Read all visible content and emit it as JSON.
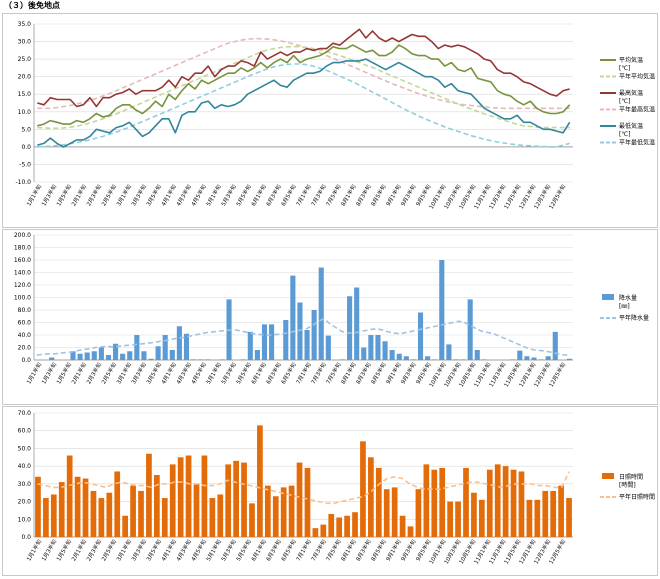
{
  "page_title": "（３）後免地点",
  "x_labels": [
    "1月1半旬",
    "1月3半旬",
    "1月5半旬",
    "2月1半旬",
    "2月3半旬",
    "2月5半旬",
    "3月1半旬",
    "3月3半旬",
    "3月5半旬",
    "4月1半旬",
    "4月3半旬",
    "4月5半旬",
    "5月1半旬",
    "5月3半旬",
    "5月5半旬",
    "6月1半旬",
    "6月3半旬",
    "6月5半旬",
    "7月1半旬",
    "7月3半旬",
    "7月5半旬",
    "8月1半旬",
    "8月3半旬",
    "8月5半旬",
    "9月1半旬",
    "9月3半旬",
    "9月5半旬",
    "10月1半旬",
    "10月3半旬",
    "10月5半旬",
    "11月1半旬",
    "11月3半旬",
    "11月5半旬",
    "12月1半旬",
    "12月3半旬",
    "12月5半旬"
  ],
  "chart_data": [
    {
      "type": "line",
      "ylim": [
        -10,
        35
      ],
      "ytick_step": 5,
      "ytick_decimals": 1,
      "colors": {
        "avg": "#77933c",
        "max": "#953735",
        "min": "#31859c"
      },
      "legend": [
        {
          "key": "avg",
          "label": "平均気温",
          "unit": "[℃]",
          "style": "solid",
          "color": "#77933c"
        },
        {
          "key": "avg_normal",
          "label": "平年平均気温",
          "style": "dash",
          "color": "#c3d69b"
        },
        {
          "key": "max",
          "label": "最高気温",
          "unit": "[℃]",
          "style": "solid",
          "color": "#953735"
        },
        {
          "key": "max_normal",
          "label": "平年最高気温",
          "style": "dash",
          "color": "#e6b9b8"
        },
        {
          "key": "min",
          "label": "最低気温",
          "unit": "[℃]",
          "style": "solid",
          "color": "#31859c"
        },
        {
          "key": "min_normal",
          "label": "平年最低気温",
          "style": "dash",
          "color": "#93cddd"
        }
      ],
      "series": {
        "avg": [
          6,
          6.5,
          7.5,
          7,
          6.5,
          6.5,
          7.5,
          7,
          8,
          9.5,
          8.5,
          9,
          11,
          12,
          12,
          10.5,
          9.5,
          11,
          13,
          11.5,
          15,
          13.5,
          16,
          18,
          16.5,
          19,
          18,
          19,
          20,
          21,
          21,
          22.5,
          21.5,
          22.5,
          24,
          22.5,
          24,
          25,
          24,
          26,
          24,
          25,
          25.5,
          26,
          27,
          28.5,
          28,
          28,
          29,
          28,
          27,
          27.5,
          26,
          26,
          27,
          29,
          28,
          26.5,
          26,
          26,
          25,
          25,
          23,
          24,
          22,
          21.5,
          22.5,
          19.5,
          19,
          18.5,
          16,
          15,
          14.5,
          13,
          12,
          13,
          11,
          10,
          9.5,
          9.5,
          10,
          12
        ],
        "max": [
          12.5,
          12,
          14,
          13.5,
          13.5,
          13.5,
          11.5,
          12,
          14,
          11.5,
          14,
          14,
          15,
          15.5,
          16.5,
          15,
          16,
          16,
          16,
          17,
          19,
          17,
          20,
          19,
          21,
          21,
          23,
          20,
          22,
          23,
          23,
          24.5,
          24,
          23,
          27,
          25,
          26,
          27,
          26,
          27,
          27,
          28,
          27.5,
          28,
          28,
          29.5,
          29,
          30.5,
          32,
          33.5,
          31,
          33,
          31,
          30,
          31,
          30,
          31,
          32,
          31.5,
          31.5,
          30,
          28,
          29,
          28.5,
          29,
          28.5,
          27.5,
          26.5,
          25,
          24.5,
          22,
          21,
          21,
          20,
          18.5,
          18,
          17,
          16,
          15,
          14.5,
          16,
          16.5
        ],
        "min": [
          0.5,
          1,
          2.5,
          1,
          0,
          1,
          2,
          2,
          3,
          5,
          4.5,
          4,
          5.5,
          6,
          7,
          5,
          3,
          4,
          6,
          8,
          8,
          4,
          9,
          10,
          10,
          12.5,
          13,
          11,
          12,
          11.5,
          12,
          13,
          15,
          16,
          17,
          18,
          19,
          17.5,
          17,
          19,
          20,
          21,
          21,
          21.5,
          23,
          24,
          24,
          24.5,
          24.5,
          24.5,
          25,
          24,
          23,
          22,
          23,
          24,
          23,
          22,
          21,
          20,
          20,
          19,
          17,
          18,
          16,
          15.5,
          15,
          13,
          11,
          10,
          9,
          8,
          8,
          9,
          7,
          7,
          6,
          5,
          5,
          4.5,
          4,
          7
        ],
        "avg_normal": [
          5.5,
          5.4,
          5.3,
          5.3,
          5.4,
          5.6,
          5.9,
          6.3,
          6.8,
          7.4,
          8,
          8.7,
          9.4,
          10.2,
          11,
          11.8,
          12.6,
          13.4,
          14.2,
          15,
          15.8,
          16.6,
          17.4,
          18.2,
          19,
          19.8,
          20.6,
          21.4,
          22.2,
          23,
          23.8,
          24.6,
          25.4,
          26.2,
          27,
          27.6,
          28,
          28.3,
          28.5,
          28.6,
          28.5,
          28.3,
          28,
          27.6,
          27.2,
          26.6,
          26,
          25.4,
          24.7,
          24,
          23.3,
          22.6,
          21.8,
          21,
          20.2,
          19.4,
          18.6,
          17.8,
          17,
          16.2,
          15.4,
          14.6,
          13.8,
          13,
          12.2,
          11.5,
          10.8,
          10.1,
          9.4,
          8.8,
          8.2,
          7.6,
          7,
          6.4,
          6,
          5.8,
          5.6,
          5.5,
          5.5,
          5.5,
          5.5,
          5.5
        ],
        "max_normal": [
          11,
          11,
          11,
          11.2,
          11.5,
          11.8,
          12.2,
          12.7,
          13.2,
          13.8,
          14.5,
          15.2,
          16,
          16.8,
          17.6,
          18.4,
          19.2,
          20,
          20.8,
          21.6,
          22.4,
          23.2,
          24,
          24.8,
          25.6,
          26.4,
          27.2,
          28,
          28.8,
          29.5,
          30,
          30.4,
          30.7,
          30.8,
          30.8,
          30.7,
          30.5,
          30.2,
          29.8,
          29.3,
          28.8,
          28.2,
          27.5,
          26.8,
          26,
          25.2,
          24.4,
          23.6,
          22.8,
          22,
          21.2,
          20.4,
          19.6,
          18.8,
          18,
          17.3,
          16.6,
          15.9,
          15.2,
          14.6,
          14,
          13.5,
          13,
          12.6,
          12.3,
          12,
          11.8,
          11.6,
          11.4,
          11.2,
          11.1,
          11,
          11,
          11,
          11,
          11,
          11,
          11,
          11,
          11,
          11,
          11
        ],
        "min_normal": [
          0,
          0.1,
          0.2,
          0.4,
          0.6,
          0.9,
          1.2,
          1.6,
          2,
          2.5,
          3,
          3.6,
          4.2,
          4.9,
          5.6,
          6.4,
          7.2,
          8,
          8.8,
          9.6,
          10.4,
          11.2,
          12,
          12.8,
          13.6,
          14.4,
          15.2,
          16,
          16.8,
          17.6,
          18.4,
          19.2,
          20,
          20.8,
          21.5,
          22.2,
          22.8,
          23.2,
          23.5,
          23.6,
          23.6,
          23.4,
          23,
          22.4,
          21.8,
          21,
          20.2,
          19.4,
          18.5,
          17.6,
          16.6,
          15.6,
          14.6,
          13.6,
          12.6,
          11.6,
          10.6,
          9.7,
          8.8,
          8,
          7.2,
          6.4,
          5.7,
          5,
          4.4,
          3.8,
          3.2,
          2.7,
          2.2,
          1.8,
          1.4,
          1.1,
          0.8,
          0.6,
          0.4,
          0.3,
          0.2,
          0.1,
          0,
          0,
          0.5,
          1
        ]
      }
    },
    {
      "type": "bar",
      "ylim": [
        0,
        200
      ],
      "ytick_step": 20,
      "ytick_decimals": 1,
      "bar_color": "#5b9bd5",
      "normal_color": "#9dc3e6",
      "legend": [
        {
          "key": "bar",
          "label": "降水量",
          "unit": "[㎜]",
          "style": "box",
          "color": "#5b9bd5"
        },
        {
          "key": "normal",
          "label": "平年降水量",
          "style": "dash",
          "color": "#9dc3e6"
        }
      ],
      "values": [
        0,
        0,
        4,
        0,
        0,
        14,
        10,
        12,
        14,
        20,
        8,
        26,
        10,
        14,
        40,
        14,
        2,
        22,
        40,
        16,
        54,
        42,
        1,
        1,
        1,
        0,
        1,
        97,
        0,
        1,
        45,
        16,
        57,
        57,
        0,
        64,
        135,
        92,
        48,
        80,
        148,
        39,
        0,
        1,
        102,
        116,
        20,
        40,
        40,
        30,
        16,
        10,
        6,
        1,
        76,
        6,
        1,
        160,
        25,
        1,
        1,
        97,
        16,
        1,
        0,
        0,
        0,
        1,
        15,
        6,
        4,
        1,
        6,
        45,
        0,
        2
      ],
      "normal": [
        8,
        9,
        10,
        10,
        11,
        12,
        13,
        15,
        17,
        18,
        20,
        21,
        22,
        21,
        22,
        23,
        24,
        25,
        26,
        27,
        28,
        30,
        31,
        33,
        35,
        36,
        38,
        40,
        42,
        44,
        45,
        46,
        47,
        48,
        48,
        46,
        44,
        42,
        41,
        40,
        40,
        41,
        42,
        44,
        46,
        48,
        50,
        55,
        62,
        66,
        58,
        52,
        46,
        43,
        43,
        45,
        47,
        49,
        50,
        48,
        45,
        43,
        42,
        44,
        46,
        48,
        50,
        52,
        54,
        56,
        58,
        60,
        62,
        60,
        55,
        50,
        46,
        44,
        42,
        38,
        34,
        30,
        26,
        22,
        18,
        16,
        15,
        14,
        12,
        10,
        8,
        8
      ]
    },
    {
      "type": "bar",
      "ylim": [
        0,
        70
      ],
      "ytick_step": 10,
      "ytick_decimals": 1,
      "bar_color": "#e36c09",
      "normal_color": "#fac090",
      "legend": [
        {
          "key": "bar",
          "label": "日照時間",
          "unit": "[時間]",
          "style": "box",
          "color": "#e36c09"
        },
        {
          "key": "normal",
          "label": "平年日照時間",
          "style": "dash",
          "color": "#fac090"
        }
      ],
      "values": [
        34,
        22,
        24,
        31,
        46,
        34,
        33,
        26,
        22,
        25,
        37,
        12,
        29,
        26,
        47,
        35,
        22,
        41,
        45,
        46,
        30,
        46,
        22,
        24,
        41,
        43,
        42,
        19,
        63,
        29,
        23,
        28,
        29,
        42,
        39,
        5,
        7,
        13,
        11,
        12,
        14,
        54,
        45,
        39,
        27,
        28,
        12,
        6,
        27,
        41,
        38,
        39,
        20,
        20,
        39,
        25,
        21,
        38,
        41,
        40,
        38,
        37,
        21,
        21,
        26,
        26,
        29,
        22
      ],
      "normal": [
        30,
        29,
        28,
        28,
        29,
        30,
        31,
        30,
        29,
        28,
        30,
        31,
        30,
        29,
        29,
        28,
        30,
        30,
        31,
        31,
        30,
        30,
        29,
        29,
        30,
        32,
        31,
        30,
        29,
        28,
        27,
        26,
        25,
        24,
        23,
        22,
        21,
        20,
        19,
        19,
        20,
        21,
        22,
        23,
        26,
        30,
        33,
        34,
        33,
        30,
        28,
        27,
        27,
        27,
        28,
        29,
        30,
        31,
        31,
        30,
        29,
        28,
        29,
        30,
        30,
        30,
        29,
        29,
        28,
        28,
        37
      ]
    }
  ]
}
